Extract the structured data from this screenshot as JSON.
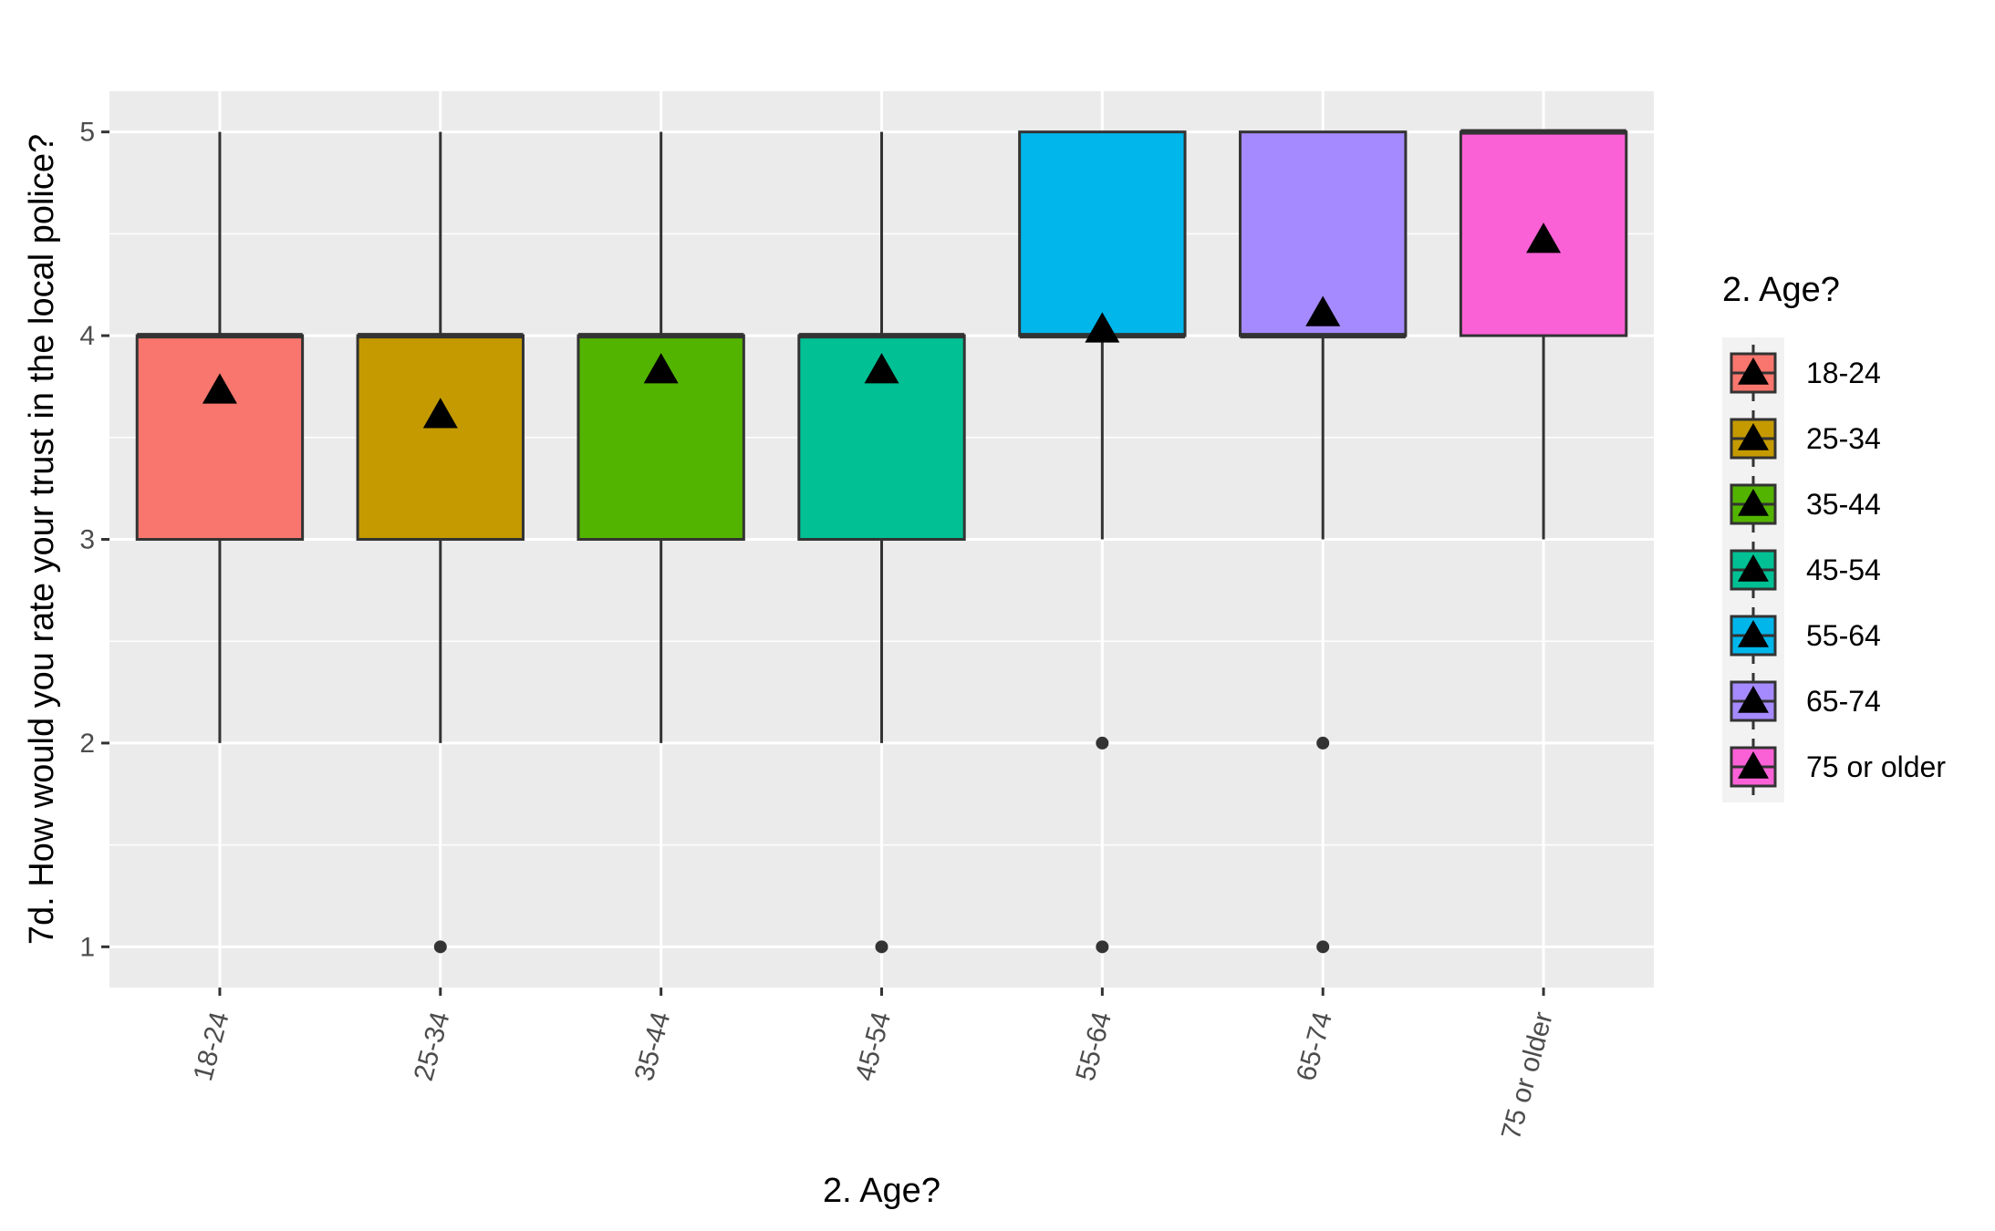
{
  "chart_data": {
    "type": "box",
    "xlabel": "2. Age?",
    "ylabel": "7d. How would you rate your trust in the local police?",
    "ylim": [
      0.8,
      5.2
    ],
    "yticks": [
      1,
      2,
      3,
      4,
      5
    ],
    "grid": true,
    "legend": {
      "title": "2. Age?",
      "placement": "right"
    },
    "mean_marker": "triangle",
    "categories": [
      "18-24",
      "25-34",
      "35-44",
      "45-54",
      "55-64",
      "65-74",
      "75 or older"
    ],
    "colors": [
      "#F8766D",
      "#C49A00",
      "#53B400",
      "#00C094",
      "#00B6EB",
      "#A58AFF",
      "#FB61D7"
    ],
    "boxes": [
      {
        "category": "18-24",
        "whisker_low": 2,
        "q1": 3,
        "median": 4,
        "q3": 4,
        "whisker_high": 5,
        "mean": 3.73,
        "outliers": []
      },
      {
        "category": "25-34",
        "whisker_low": 2,
        "q1": 3,
        "median": 4,
        "q3": 4,
        "whisker_high": 5,
        "mean": 3.61,
        "outliers": [
          1
        ]
      },
      {
        "category": "35-44",
        "whisker_low": 2,
        "q1": 3,
        "median": 4,
        "q3": 4,
        "whisker_high": 5,
        "mean": 3.83,
        "outliers": []
      },
      {
        "category": "45-54",
        "whisker_low": 2,
        "q1": 3,
        "median": 4,
        "q3": 4,
        "whisker_high": 5,
        "mean": 3.83,
        "outliers": [
          1
        ]
      },
      {
        "category": "55-64",
        "whisker_low": 3,
        "q1": 4,
        "median": 4,
        "q3": 5,
        "whisker_high": 5,
        "mean": 4.03,
        "outliers": [
          2,
          1
        ]
      },
      {
        "category": "65-74",
        "whisker_low": 3,
        "q1": 4,
        "median": 4,
        "q3": 5,
        "whisker_high": 5,
        "mean": 4.11,
        "outliers": [
          2,
          1
        ]
      },
      {
        "category": "75 or older",
        "whisker_low": 3,
        "q1": 4,
        "median": 5,
        "q3": 5,
        "whisker_high": 5,
        "mean": 4.47,
        "outliers": []
      }
    ]
  }
}
